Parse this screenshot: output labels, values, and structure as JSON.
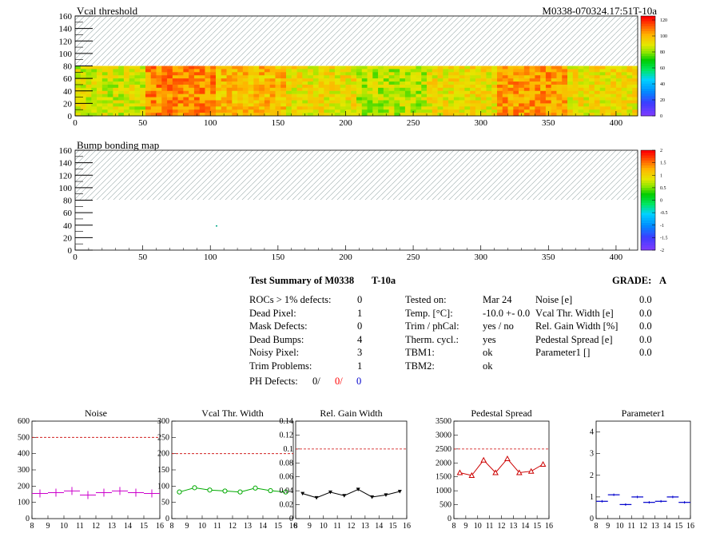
{
  "header": {
    "vcal_title": "Vcal threshold",
    "module_id": "M0338-070324.17:51T-10a",
    "bump_title": "Bump bonding map"
  },
  "summary": {
    "title": "Test Summary of M0338",
    "temp_tag": "T-10a",
    "grade_label": "GRADE:",
    "grade_value": "A",
    "col1": [
      {
        "label": "ROCs > 1% defects:",
        "value": "0"
      },
      {
        "label": "Dead Pixel:",
        "value": "1"
      },
      {
        "label": "Mask Defects:",
        "value": "0"
      },
      {
        "label": "Dead Bumps:",
        "value": "4"
      },
      {
        "label": "Noisy Pixel:",
        "value": "3"
      },
      {
        "label": "Trim Problems:",
        "value": "1"
      }
    ],
    "ph_defects": {
      "label": "PH Defects:",
      "v1": "0/",
      "v2": "0/",
      "v3": "0",
      "c2": "#ff0000",
      "c3": "#0000cc"
    },
    "col2": [
      {
        "label": "Tested on:",
        "value": "Mar 24"
      },
      {
        "label": "Temp. [°C]:",
        "value": "-10.0 +- 0.0"
      },
      {
        "label": "Trim / phCal:",
        "value": "yes / no"
      },
      {
        "label": "Therm. cycl.:",
        "value": "yes"
      },
      {
        "label": "TBM1:",
        "value": "ok"
      },
      {
        "label": "TBM2:",
        "value": "ok"
      }
    ],
    "col3": [
      {
        "label": "Noise [e]",
        "value": "0.0"
      },
      {
        "label": "Vcal Thr. Width [e]",
        "value": "0.0"
      },
      {
        "label": "Rel. Gain Width [%]",
        "value": "0.0"
      },
      {
        "label": "Pedestal Spread [e]",
        "value": "0.0"
      },
      {
        "label": "Parameter1 []",
        "value": "0.0"
      }
    ]
  },
  "chart_data": [
    {
      "type": "heatmap",
      "title": "Vcal threshold",
      "xlim": [
        0,
        416
      ],
      "ylim": [
        0,
        160
      ],
      "x_ticks": [
        0,
        50,
        100,
        150,
        200,
        250,
        300,
        350,
        400
      ],
      "y_ticks": [
        0,
        20,
        40,
        60,
        80,
        100,
        120,
        140,
        160
      ],
      "filled_rows": [
        0,
        80
      ],
      "empty_rows_hatched": [
        80,
        160
      ],
      "colorbar_range": [
        0,
        125
      ],
      "colorbar_ticks": [
        "0",
        "20",
        "40",
        "60",
        "80",
        "100",
        "120"
      ]
    },
    {
      "type": "heatmap",
      "title": "Bump bonding map",
      "xlim": [
        0,
        416
      ],
      "ylim": [
        0,
        160
      ],
      "x_ticks": [
        0,
        50,
        100,
        150,
        200,
        250,
        300,
        350,
        400
      ],
      "y_ticks": [
        0,
        20,
        40,
        60,
        80,
        100,
        120,
        140,
        160
      ],
      "empty_rows_hatched": [
        80,
        160
      ],
      "colorbar_range": [
        -2,
        2
      ],
      "colorbar_ticks": [
        "-2",
        "-1.5",
        "-1",
        "-0.5",
        "0",
        "0.5",
        "1",
        "1.5",
        "2"
      ]
    },
    {
      "type": "scatter",
      "title": "Noise",
      "x": [
        8.5,
        9.5,
        10.5,
        11.5,
        12.5,
        13.5,
        14.5,
        15.5
      ],
      "values": [
        155,
        160,
        170,
        145,
        160,
        170,
        160,
        155
      ],
      "xlim": [
        8,
        16
      ],
      "ylim": [
        0,
        600
      ],
      "ref_line": 500,
      "y_ticks": [
        "0",
        "100",
        "200",
        "300",
        "400",
        "500",
        "600"
      ],
      "x_ticks": [
        "8",
        "9",
        "10",
        "11",
        "12",
        "13",
        "14",
        "15",
        "16"
      ],
      "color": "#cc00cc",
      "marker": "plus",
      "connected": false
    },
    {
      "type": "line",
      "title": "Vcal Thr. Width",
      "x": [
        8.5,
        9.5,
        10.5,
        11.5,
        12.5,
        13.5,
        14.5,
        15.5
      ],
      "values": [
        82,
        95,
        88,
        85,
        82,
        94,
        86,
        82
      ],
      "xlim": [
        8,
        16
      ],
      "ylim": [
        0,
        300
      ],
      "ref_line": 200,
      "y_ticks": [
        "0",
        "50",
        "100",
        "150",
        "200",
        "250",
        "300"
      ],
      "x_ticks": [
        "8",
        "9",
        "10",
        "11",
        "12",
        "13",
        "14",
        "15",
        "16"
      ],
      "color": "#00aa00",
      "marker": "circle",
      "connected": true
    },
    {
      "type": "line",
      "title": "Rel. Gain Width",
      "x": [
        8.5,
        9.5,
        10.5,
        11.5,
        12.5,
        13.5,
        14.5,
        15.5
      ],
      "values": [
        0.036,
        0.03,
        0.038,
        0.033,
        0.042,
        0.031,
        0.034,
        0.039
      ],
      "xlim": [
        8,
        16
      ],
      "ylim": [
        0,
        0.14
      ],
      "ref_line": 0.1,
      "y_ticks": [
        "0",
        "0.02",
        "0.04",
        "0.06",
        "0.08",
        "0.1",
        "0.12",
        "0.14"
      ],
      "x_ticks": [
        "8",
        "9",
        "10",
        "11",
        "12",
        "13",
        "14",
        "15",
        "16"
      ],
      "color": "#000000",
      "marker": "triangle-down",
      "connected": true
    },
    {
      "type": "line",
      "title": "Pedestal Spread",
      "x": [
        8.5,
        9.5,
        10.5,
        11.5,
        12.5,
        13.5,
        14.5,
        15.5
      ],
      "values": [
        1650,
        1550,
        2100,
        1650,
        2150,
        1650,
        1700,
        1950
      ],
      "xlim": [
        8,
        16
      ],
      "ylim": [
        0,
        3500
      ],
      "ref_line": 2500,
      "y_ticks": [
        "0",
        "500",
        "1000",
        "1500",
        "2000",
        "2500",
        "3000",
        "3500"
      ],
      "x_ticks": [
        "8",
        "9",
        "10",
        "11",
        "12",
        "13",
        "14",
        "15",
        "16"
      ],
      "color": "#cc0000",
      "marker": "triangle-up",
      "connected": true
    },
    {
      "type": "scatter",
      "title": "Parameter1",
      "x": [
        8.5,
        9.5,
        10.5,
        11.5,
        12.5,
        13.5,
        14.5,
        15.5
      ],
      "values": [
        0.8,
        1.1,
        0.65,
        1.0,
        0.75,
        0.8,
        1.0,
        0.75
      ],
      "xlim": [
        8,
        16
      ],
      "ylim": [
        0,
        4.5
      ],
      "ref_line": null,
      "y_ticks": [
        "0",
        "1",
        "2",
        "3",
        "4"
      ],
      "x_ticks": [
        "8",
        "9",
        "10",
        "11",
        "12",
        "13",
        "14",
        "15",
        "16"
      ],
      "color": "#0000cc",
      "marker": "hbar",
      "connected": false
    }
  ]
}
